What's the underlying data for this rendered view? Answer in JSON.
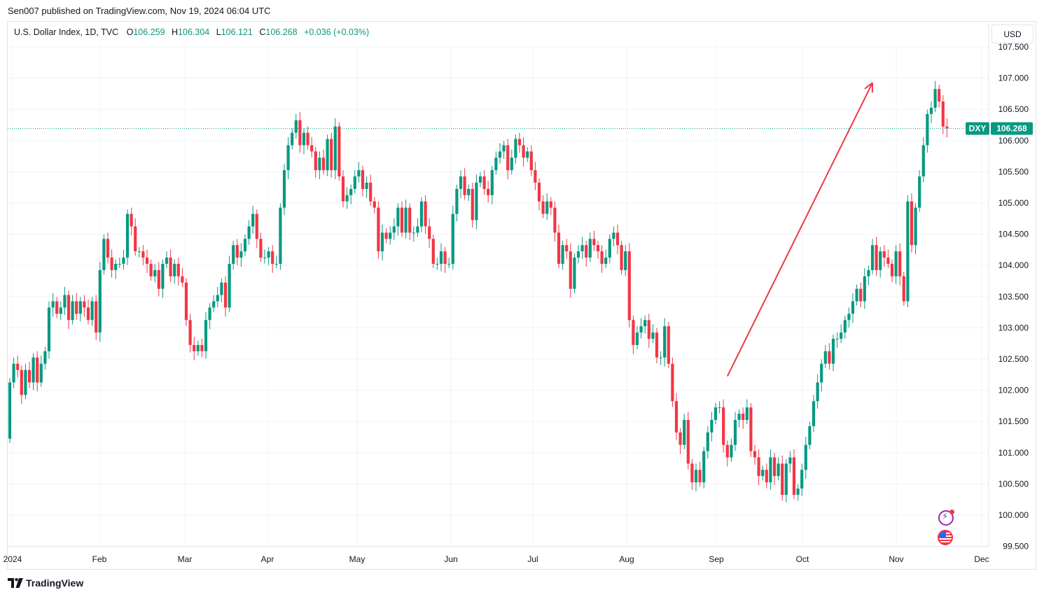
{
  "header": {
    "publish_text": "Sen007 published on TradingView.com, Nov 19, 2024 06:04 UTC"
  },
  "legend": {
    "symbol": "U.S. Dollar Index, 1D, TVC",
    "o_label": "O",
    "o_value": "106.259",
    "h_label": "H",
    "h_value": "106.304",
    "l_label": "L",
    "l_value": "106.121",
    "c_label": "C",
    "c_value": "106.268",
    "change": "+0.036 (+0.03%)"
  },
  "currency_button": "USD",
  "price_badge": {
    "ticker": "DXY",
    "value": "106.268"
  },
  "footer": {
    "brand": "TradingView"
  },
  "colors": {
    "up": "#089981",
    "down": "#f23645",
    "grid": "#f0f3fa",
    "text": "#131722",
    "arrow": "#f23645",
    "badge_bg": "#089981"
  },
  "icons": [
    "bolt-icon",
    "us-flag-icon",
    "tradingview-logo-icon"
  ],
  "chart_data": {
    "type": "candlestick",
    "title": "U.S. Dollar Index, 1D, TVC",
    "xlabel": "",
    "ylabel": "",
    "ylim": [
      99.4,
      107.6
    ],
    "y_ticks": [
      "107.500",
      "107.000",
      "106.500",
      "106.000",
      "105.500",
      "105.000",
      "104.500",
      "104.000",
      "103.500",
      "103.000",
      "102.500",
      "102.000",
      "101.500",
      "101.000",
      "100.500",
      "100.000",
      "99.500"
    ],
    "x_ticks": [
      "2024",
      "Feb",
      "Mar",
      "Apr",
      "May",
      "Jun",
      "Jul",
      "Aug",
      "Sep",
      "Oct",
      "Nov",
      "Dec"
    ],
    "last_price": 106.268,
    "annotation": {
      "type": "arrow",
      "from": {
        "date_index": 183,
        "value": 102.3
      },
      "to": {
        "date_index": 220,
        "value": 107.0
      }
    },
    "candles": [
      [
        101.3,
        102.2
      ],
      [
        102.2,
        102.5
      ],
      [
        102.5,
        102.4
      ],
      [
        102.4,
        102.0
      ],
      [
        102.0,
        102.4
      ],
      [
        102.4,
        102.2
      ],
      [
        102.2,
        102.6
      ],
      [
        102.6,
        102.2
      ],
      [
        102.2,
        102.5
      ],
      [
        102.5,
        102.7
      ],
      [
        102.7,
        103.4
      ],
      [
        103.4,
        103.5
      ],
      [
        103.5,
        103.3
      ],
      [
        103.3,
        103.4
      ],
      [
        103.4,
        103.6
      ],
      [
        103.6,
        103.2
      ],
      [
        103.2,
        103.5
      ],
      [
        103.5,
        103.3
      ],
      [
        103.3,
        103.5
      ],
      [
        103.5,
        103.4
      ],
      [
        103.4,
        103.2
      ],
      [
        103.2,
        103.5
      ],
      [
        103.5,
        103.0
      ],
      [
        103.0,
        104.0
      ],
      [
        104.0,
        104.5
      ],
      [
        104.5,
        104.2
      ],
      [
        104.2,
        104.0
      ],
      [
        104.0,
        104.1
      ],
      [
        104.1,
        104.1
      ],
      [
        104.1,
        104.2
      ],
      [
        104.2,
        104.9
      ],
      [
        104.9,
        104.7
      ],
      [
        104.7,
        104.3
      ],
      [
        104.3,
        104.3
      ],
      [
        104.3,
        104.2
      ],
      [
        104.2,
        104.1
      ],
      [
        104.1,
        103.9
      ],
      [
        103.9,
        104.0
      ],
      [
        104.0,
        103.7
      ],
      [
        103.7,
        104.1
      ],
      [
        104.1,
        104.2
      ],
      [
        104.2,
        103.9
      ],
      [
        103.9,
        104.1
      ],
      [
        104.1,
        103.9
      ],
      [
        103.9,
        103.8
      ],
      [
        103.8,
        103.2
      ],
      [
        103.2,
        102.8
      ],
      [
        102.8,
        102.7
      ],
      [
        102.7,
        102.8
      ],
      [
        102.8,
        102.7
      ],
      [
        102.7,
        103.2
      ],
      [
        103.2,
        103.4
      ],
      [
        103.4,
        103.5
      ],
      [
        103.5,
        103.6
      ],
      [
        103.6,
        103.8
      ],
      [
        103.8,
        103.4
      ],
      [
        103.4,
        104.1
      ],
      [
        104.1,
        104.4
      ],
      [
        104.4,
        104.2
      ],
      [
        104.2,
        104.3
      ],
      [
        104.3,
        104.5
      ],
      [
        104.5,
        104.7
      ],
      [
        104.7,
        104.9
      ],
      [
        104.9,
        104.5
      ],
      [
        104.5,
        104.2
      ],
      [
        104.2,
        104.2
      ],
      [
        104.2,
        104.3
      ],
      [
        104.3,
        104.1
      ],
      [
        104.1,
        104.1
      ],
      [
        104.1,
        105.0
      ],
      [
        105.0,
        105.6
      ],
      [
        105.6,
        106.0
      ],
      [
        106.0,
        106.2
      ],
      [
        106.2,
        106.4
      ],
      [
        106.4,
        106.0
      ],
      [
        106.0,
        106.2
      ],
      [
        106.2,
        106.0
      ],
      [
        106.0,
        105.9
      ],
      [
        105.9,
        105.6
      ],
      [
        105.6,
        105.8
      ],
      [
        105.8,
        105.6
      ],
      [
        105.6,
        106.1
      ],
      [
        106.1,
        105.6
      ],
      [
        105.6,
        106.3
      ],
      [
        106.3,
        105.5
      ],
      [
        105.5,
        105.1
      ],
      [
        105.1,
        105.2
      ],
      [
        105.2,
        105.3
      ],
      [
        105.3,
        105.5
      ],
      [
        105.5,
        105.6
      ],
      [
        105.6,
        105.3
      ],
      [
        105.3,
        105.4
      ],
      [
        105.4,
        105.1
      ],
      [
        105.1,
        105.0
      ],
      [
        105.0,
        104.3
      ],
      [
        104.3,
        104.6
      ],
      [
        104.6,
        104.5
      ],
      [
        104.5,
        104.6
      ],
      [
        104.6,
        104.7
      ],
      [
        104.7,
        105.0
      ],
      [
        105.0,
        104.6
      ],
      [
        104.6,
        105.0
      ],
      [
        105.0,
        104.6
      ],
      [
        104.6,
        104.6
      ],
      [
        104.6,
        104.7
      ],
      [
        104.7,
        105.1
      ],
      [
        105.1,
        104.7
      ],
      [
        104.7,
        104.5
      ],
      [
        104.5,
        104.1
      ],
      [
        104.1,
        104.1
      ],
      [
        104.1,
        104.3
      ],
      [
        104.3,
        104.1
      ],
      [
        104.1,
        104.1
      ],
      [
        104.1,
        104.9
      ],
      [
        104.9,
        105.3
      ],
      [
        105.3,
        105.5
      ],
      [
        105.5,
        105.2
      ],
      [
        105.2,
        105.3
      ],
      [
        105.3,
        104.8
      ],
      [
        104.8,
        105.4
      ],
      [
        105.4,
        105.5
      ],
      [
        105.5,
        105.3
      ],
      [
        105.3,
        105.2
      ],
      [
        105.2,
        105.6
      ],
      [
        105.6,
        105.8
      ],
      [
        105.8,
        105.9
      ],
      [
        105.9,
        106.0
      ],
      [
        106.0,
        105.6
      ],
      [
        105.6,
        105.8
      ],
      [
        105.8,
        106.1
      ],
      [
        106.1,
        106.0
      ],
      [
        106.0,
        105.8
      ],
      [
        105.8,
        105.9
      ],
      [
        105.9,
        105.6
      ],
      [
        105.6,
        105.4
      ],
      [
        105.4,
        105.1
      ],
      [
        105.1,
        104.9
      ],
      [
        104.9,
        105.1
      ],
      [
        105.1,
        105.0
      ],
      [
        105.0,
        104.6
      ],
      [
        104.6,
        104.1
      ],
      [
        104.1,
        104.4
      ],
      [
        104.4,
        104.3
      ],
      [
        104.3,
        103.7
      ],
      [
        103.7,
        104.2
      ],
      [
        104.2,
        104.3
      ],
      [
        104.3,
        104.4
      ],
      [
        104.4,
        104.2
      ],
      [
        104.2,
        104.5
      ],
      [
        104.5,
        104.4
      ],
      [
        104.4,
        104.3
      ],
      [
        104.3,
        104.1
      ],
      [
        104.1,
        104.2
      ],
      [
        104.2,
        104.5
      ],
      [
        104.5,
        104.6
      ],
      [
        104.6,
        104.4
      ],
      [
        104.4,
        104.0
      ],
      [
        104.0,
        104.3
      ],
      [
        104.3,
        103.2
      ],
      [
        103.2,
        102.8
      ],
      [
        102.8,
        103.0
      ],
      [
        103.0,
        103.1
      ],
      [
        103.1,
        103.2
      ],
      [
        103.2,
        102.9
      ],
      [
        102.9,
        103.0
      ],
      [
        103.0,
        102.6
      ],
      [
        102.6,
        102.6
      ],
      [
        102.6,
        103.1
      ],
      [
        103.1,
        102.5
      ],
      [
        102.5,
        101.9
      ],
      [
        101.9,
        101.4
      ],
      [
        101.4,
        101.2
      ],
      [
        101.2,
        101.6
      ],
      [
        101.6,
        100.9
      ],
      [
        100.9,
        100.6
      ],
      [
        100.6,
        100.8
      ],
      [
        100.8,
        100.6
      ],
      [
        100.6,
        101.1
      ],
      [
        101.1,
        101.4
      ],
      [
        101.4,
        101.6
      ],
      [
        101.6,
        101.8
      ],
      [
        101.8,
        101.8
      ],
      [
        101.8,
        101.2
      ],
      [
        101.2,
        101.0
      ],
      [
        101.0,
        101.2
      ],
      [
        101.2,
        101.6
      ],
      [
        101.6,
        101.7
      ],
      [
        101.7,
        101.6
      ],
      [
        101.6,
        101.8
      ],
      [
        101.8,
        101.1
      ],
      [
        101.1,
        101.0
      ],
      [
        101.0,
        100.7
      ],
      [
        100.7,
        100.8
      ],
      [
        100.8,
        100.6
      ],
      [
        100.6,
        101.0
      ],
      [
        101.0,
        100.7
      ],
      [
        100.7,
        100.9
      ],
      [
        100.9,
        100.4
      ],
      [
        100.4,
        100.9
      ],
      [
        100.9,
        101.0
      ],
      [
        101.0,
        100.4
      ],
      [
        100.4,
        100.5
      ],
      [
        100.5,
        100.8
      ],
      [
        100.8,
        101.2
      ],
      [
        101.2,
        101.5
      ],
      [
        101.5,
        101.9
      ],
      [
        101.9,
        102.2
      ],
      [
        102.2,
        102.5
      ],
      [
        102.5,
        102.7
      ],
      [
        102.7,
        102.5
      ],
      [
        102.5,
        102.9
      ],
      [
        102.9,
        102.9
      ],
      [
        102.9,
        103.0
      ],
      [
        103.0,
        103.2
      ],
      [
        103.2,
        103.3
      ],
      [
        103.3,
        103.5
      ],
      [
        103.5,
        103.7
      ],
      [
        103.7,
        103.5
      ],
      [
        103.5,
        103.9
      ],
      [
        103.9,
        104.0
      ],
      [
        104.0,
        104.4
      ],
      [
        104.4,
        104.0
      ],
      [
        104.0,
        104.3
      ],
      [
        104.3,
        104.2
      ],
      [
        104.2,
        104.1
      ],
      [
        104.1,
        103.9
      ],
      [
        103.9,
        104.3
      ],
      [
        104.3,
        103.9
      ],
      [
        103.9,
        103.5
      ],
      [
        103.5,
        105.1
      ],
      [
        105.1,
        104.4
      ],
      [
        104.4,
        105.0
      ],
      [
        105.0,
        105.5
      ],
      [
        105.5,
        106.0
      ],
      [
        106.0,
        106.5
      ],
      [
        106.5,
        106.6
      ],
      [
        106.6,
        106.9
      ],
      [
        106.9,
        106.7
      ],
      [
        106.7,
        106.3
      ],
      [
        106.3,
        106.268
      ]
    ]
  }
}
